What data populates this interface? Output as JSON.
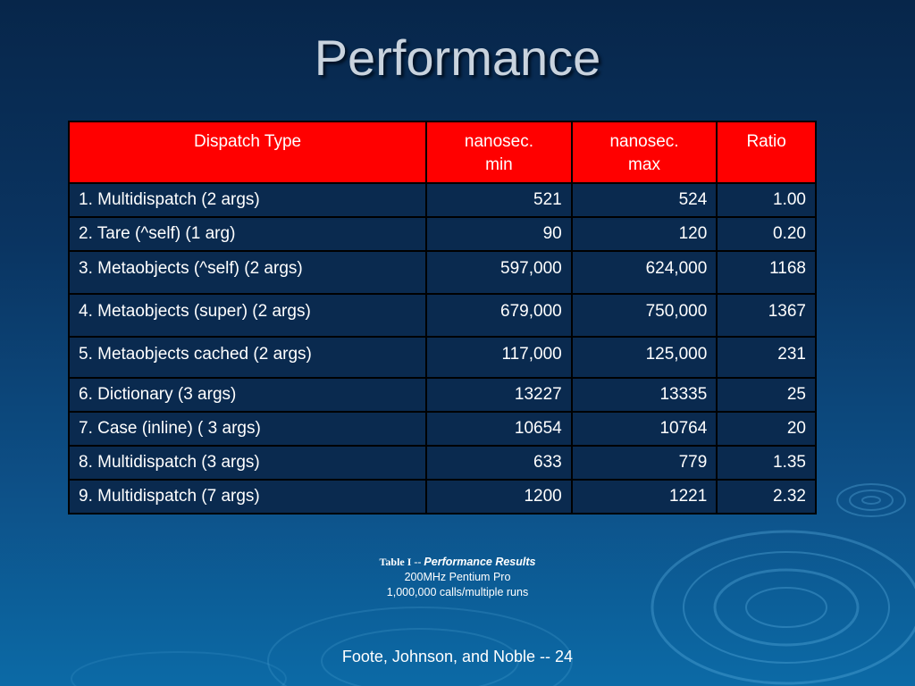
{
  "slide": {
    "title": "Performance",
    "footer": "Foote, Johnson, and Noble -- 24"
  },
  "table": {
    "headers": [
      [
        "Dispatch Type"
      ],
      [
        "nanosec.",
        "min"
      ],
      [
        "nanosec.",
        "max"
      ],
      [
        "Ratio"
      ]
    ],
    "rows": [
      [
        "1. Multidispatch (2 args)",
        "521",
        "524",
        "1.00"
      ],
      [
        "2. Tare (^self) (1 arg)",
        "90",
        "120",
        "0.20"
      ],
      [
        "3. Metaobjects (^self) (2 args)",
        "597,000",
        "624,000",
        "1168"
      ],
      [
        "4. Metaobjects (super) (2 args)",
        "679,000",
        "750,000",
        "1367"
      ],
      [
        "5. Metaobjects cached (2 args)",
        "117,000",
        "125,000",
        "231"
      ],
      [
        "6. Dictionary (3 args)",
        "13227",
        "13335",
        "25"
      ],
      [
        "7. Case (inline) ( 3 args)",
        "10654",
        "10764",
        "20"
      ],
      [
        "8. Multidispatch (3 args)",
        "633",
        "779",
        "1.35"
      ],
      [
        "9. Multidispatch (7 args)",
        "1200",
        "1221",
        "2.32"
      ]
    ]
  },
  "caption": {
    "label": "Table I -- ",
    "title": "Performance Results",
    "line2": "200MHz Pentium Pro",
    "line3": "1,000,000 calls/multiple runs"
  },
  "colors": {
    "header_bg": "#ff0000",
    "cell_bg": "#0a2a4f",
    "background_top": "#07264a",
    "background_bottom": "#0c6aa6"
  }
}
